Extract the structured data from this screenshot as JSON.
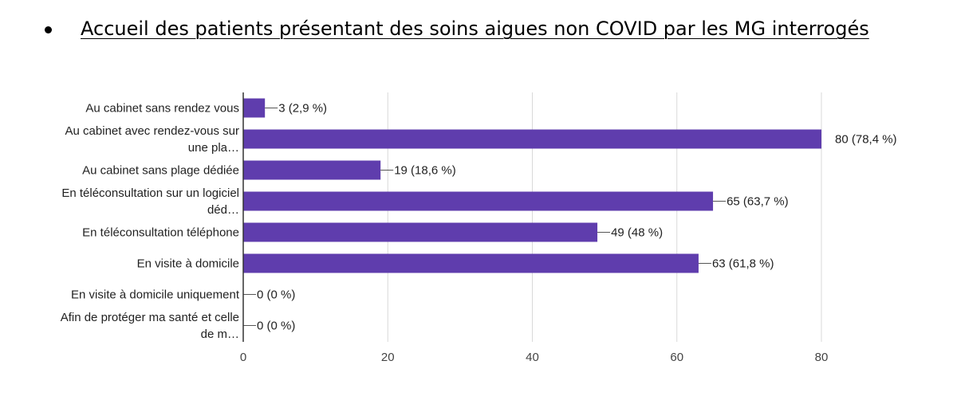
{
  "page": {
    "title": "Accueil des patients présentant des soins aigues non COVID par les MG interrogés"
  },
  "chart_data": {
    "type": "bar",
    "orientation": "horizontal",
    "categories": [
      [
        "Au cabinet sans rendez vous"
      ],
      [
        "Au cabinet avec rendez-vous sur",
        "une pla…"
      ],
      [
        "Au cabinet sans plage dédiée"
      ],
      [
        "En téléconsultation sur un logiciel",
        "déd…"
      ],
      [
        "En téléconsultation téléphone"
      ],
      [
        "En visite à domicile"
      ],
      [
        "En visite à domicile uniquement"
      ],
      [
        "Afin de protéger ma santé et celle",
        "de m…"
      ]
    ],
    "values": [
      3,
      80,
      19,
      65,
      49,
      63,
      0,
      0
    ],
    "data_labels": [
      "3 (2,9 %)",
      "80 (78,4 %)",
      "19 (18,6 %)",
      "65 (63,7 %)",
      "49 (48 %)",
      "63 (61,8 %)",
      "0 (0 %)",
      "0 (0 %)"
    ],
    "xlim": [
      0,
      80
    ],
    "xticks": [
      0,
      20,
      40,
      60,
      80
    ],
    "grid": true,
    "bar_color": "#5f3dad",
    "gridline_color": "#d9d9d9",
    "axis_color": "#333333",
    "title": "",
    "xlabel": "",
    "ylabel": ""
  }
}
